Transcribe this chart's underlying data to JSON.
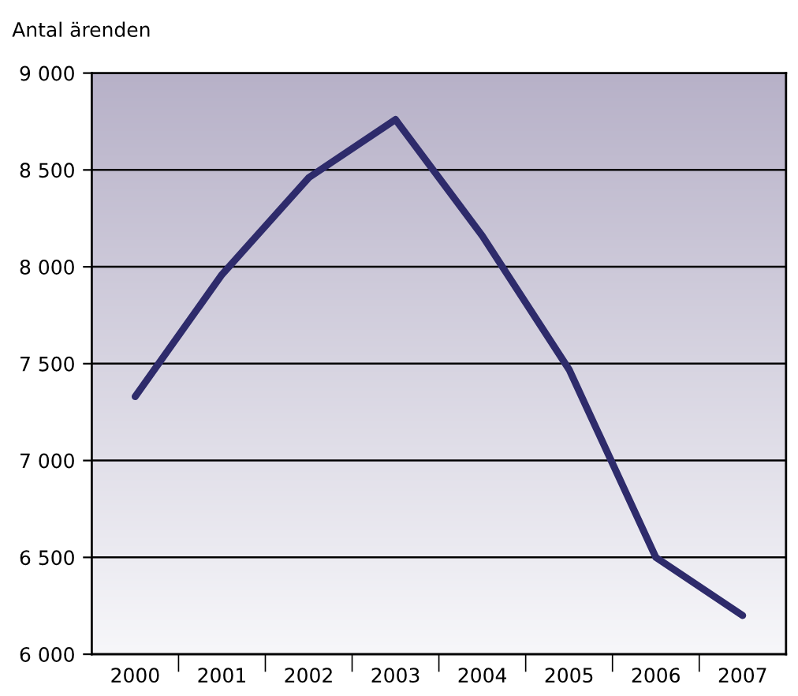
{
  "chart_data": {
    "type": "line",
    "ylabel": "Antal ärenden",
    "categories": [
      "2000",
      "2001",
      "2002",
      "2003",
      "2004",
      "2005",
      "2006",
      "2007"
    ],
    "series": [
      {
        "color": "#2e2b6b",
        "values": [
          7330,
          7960,
          8460,
          8760,
          8160,
          7470,
          6500,
          6200
        ]
      }
    ],
    "ylim": [
      6000,
      9000
    ],
    "yticks": [
      {
        "value": 6000,
        "label": "6 000"
      },
      {
        "value": 6500,
        "label": "6 500"
      },
      {
        "value": 7000,
        "label": "7 000"
      },
      {
        "value": 7500,
        "label": "7 500"
      },
      {
        "value": 8000,
        "label": "8 000"
      },
      {
        "value": 8500,
        "label": "8 500"
      },
      {
        "value": 9000,
        "label": "9 000"
      }
    ],
    "grid": "y",
    "marker": "none",
    "line_style": "solid"
  }
}
